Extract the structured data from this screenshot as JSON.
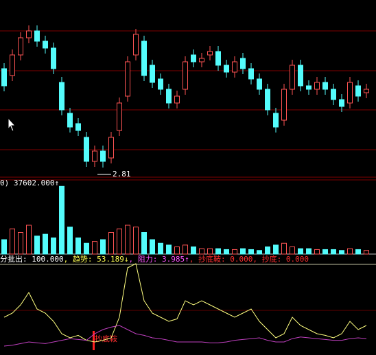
{
  "chart_data": [
    {
      "type": "candlestick",
      "up_color": "#ff5454",
      "down_color": "#54fcfc",
      "ylim": [
        2.67,
        5.25
      ],
      "open": [
        4.25,
        4.15,
        4.45,
        4.7,
        4.8,
        4.65,
        4.55,
        4.05,
        3.6,
        3.45,
        3.25,
        2.9,
        3.05,
        2.95,
        3.35,
        3.85,
        4.45,
        4.65,
        4.3,
        4.1,
        3.95,
        3.75,
        3.95,
        4.45,
        4.35,
        4.45,
        4.5,
        4.3,
        4.2,
        4.4,
        4.25,
        4.1,
        3.95,
        3.6,
        3.5,
        3.95,
        4.3,
        4.0,
        3.95,
        4.05,
        3.95,
        3.8,
        3.75,
        4.0,
        3.9
      ],
      "high": [
        4.33,
        4.53,
        4.78,
        4.88,
        4.88,
        4.73,
        4.63,
        4.13,
        3.68,
        3.53,
        3.33,
        3.13,
        3.13,
        3.33,
        3.83,
        4.43,
        4.83,
        4.73,
        4.38,
        4.18,
        4.03,
        3.93,
        4.43,
        4.53,
        4.48,
        4.58,
        4.58,
        4.38,
        4.43,
        4.48,
        4.33,
        4.18,
        4.03,
        3.68,
        4.03,
        4.38,
        4.38,
        4.08,
        4.13,
        4.13,
        4.03,
        3.88,
        4.13,
        4.08,
        4.03
      ],
      "low": [
        3.92,
        4.07,
        4.37,
        4.62,
        4.57,
        4.47,
        4.17,
        3.57,
        3.32,
        3.27,
        2.82,
        2.82,
        2.81,
        2.87,
        3.27,
        3.77,
        4.37,
        4.07,
        3.97,
        3.87,
        3.67,
        3.67,
        3.87,
        4.27,
        4.27,
        4.37,
        4.22,
        4.12,
        4.12,
        4.17,
        4.02,
        3.87,
        3.57,
        3.32,
        3.42,
        3.87,
        3.92,
        3.87,
        3.87,
        3.87,
        3.72,
        3.62,
        3.67,
        3.77,
        3.82
      ],
      "close": [
        4.0,
        4.45,
        4.7,
        4.8,
        4.65,
        4.55,
        4.25,
        3.65,
        3.4,
        3.35,
        2.9,
        3.05,
        2.9,
        3.25,
        3.75,
        4.35,
        4.75,
        4.15,
        4.05,
        3.95,
        3.75,
        3.85,
        4.35,
        4.35,
        4.4,
        4.5,
        4.3,
        4.2,
        4.35,
        4.25,
        4.1,
        3.95,
        3.65,
        3.4,
        3.95,
        4.3,
        4.0,
        3.95,
        4.05,
        3.95,
        3.8,
        3.7,
        4.05,
        3.85,
        3.95
      ]
    },
    {
      "type": "bar",
      "ylim": [
        0,
        40000
      ],
      "readout": {
        "value": 37602,
        "label": "0) 37602.000↑"
      },
      "values": [
        8000,
        14000,
        12000,
        16000,
        10000,
        11000,
        9000,
        37602,
        15000,
        9000,
        6000,
        7000,
        8000,
        12000,
        14000,
        16000,
        15000,
        12000,
        8000,
        6000,
        5000,
        4000,
        5000,
        4000,
        3000,
        3000,
        3000,
        2500,
        2500,
        3000,
        2500,
        2000,
        4000,
        5000,
        6000,
        4000,
        3000,
        3000,
        2500,
        2500,
        2500,
        2000,
        3000,
        2500,
        2000
      ]
    },
    {
      "type": "line",
      "ylim": [
        0,
        110
      ],
      "readouts": [
        {
          "name": "分批出: ",
          "value": 100,
          "value_label": "100.000",
          "color": "#ffffff"
        },
        {
          "name": ", 趋势: ",
          "value": 53.189,
          "value_label": "53.189↓",
          "color": "#ffff54"
        },
        {
          "name": ", 阻力: ",
          "value": 3.985,
          "value_label": "3.985↑",
          "color": "#ff54ff"
        },
        {
          "name": ", 抄底鞍: ",
          "value": 0,
          "value_label": "0.000",
          "color": "#ff3030"
        },
        {
          "name": ", 抄底: ",
          "value": 0,
          "value_label": "0.000",
          "color": "#ff3030"
        }
      ],
      "signal_text": "抄底鞍",
      "series": [
        {
          "color": "#ffff80",
          "values": [
            40,
            45,
            55,
            70,
            50,
            45,
            35,
            20,
            15,
            18,
            12,
            10,
            12,
            15,
            40,
            100,
            105,
            60,
            45,
            40,
            35,
            38,
            60,
            55,
            60,
            55,
            50,
            45,
            40,
            45,
            50,
            35,
            25,
            15,
            20,
            40,
            30,
            25,
            20,
            18,
            15,
            20,
            35,
            25,
            30
          ]
        },
        {
          "color": "#c040c0",
          "values": [
            5,
            6,
            8,
            10,
            9,
            8,
            10,
            12,
            14,
            13,
            12,
            20,
            25,
            28,
            30,
            25,
            20,
            18,
            15,
            14,
            12,
            10,
            10,
            10,
            10,
            9,
            9,
            10,
            12,
            13,
            14,
            15,
            12,
            10,
            10,
            14,
            16,
            15,
            14,
            13,
            12,
            12,
            14,
            15,
            14
          ]
        }
      ]
    }
  ]
}
